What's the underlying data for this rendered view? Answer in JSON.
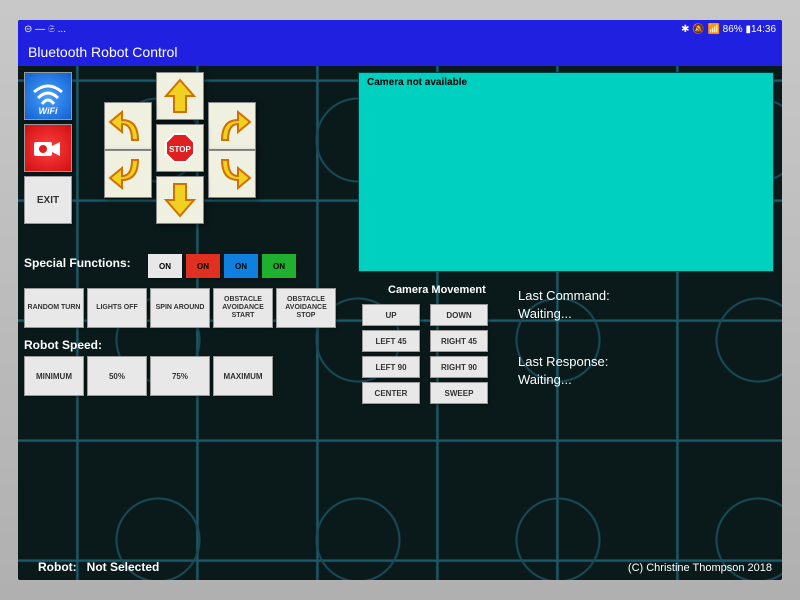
{
  "status_bar": {
    "left": "⊝ — 𝔖 ...",
    "right": "✱ 🔕 📶 86% ▮14:36"
  },
  "title": "Bluetooth Robot Control",
  "side": {
    "wifi": "WiFi",
    "exit": "EXIT"
  },
  "dpad": {
    "stop": "STOP"
  },
  "camera": {
    "not_available": "Camera not available"
  },
  "special": {
    "label": "Special Functions:",
    "toggles": [
      {
        "text": "ON",
        "bg": "#e8e8e8"
      },
      {
        "text": "ON",
        "bg": "#e03020"
      },
      {
        "text": "ON",
        "bg": "#1080e0"
      },
      {
        "text": "ON",
        "bg": "#20b030"
      }
    ],
    "funcs": [
      "RANDOM TURN",
      "LIGHTS OFF",
      "SPIN AROUND",
      "OBSTACLE AVOIDANCE START",
      "OBSTACLE AVOIDANCE STOP"
    ]
  },
  "speed": {
    "label": "Robot Speed:",
    "options": [
      "MINIMUM",
      "50%",
      "75%",
      "MAXIMUM"
    ]
  },
  "camera_move": {
    "label": "Camera Movement",
    "buttons": [
      "UP",
      "DOWN",
      "LEFT 45",
      "RIGHT 45",
      "LEFT 90",
      "RIGHT 90",
      "CENTER",
      "SWEEP"
    ]
  },
  "last_command": {
    "label": "Last Command:",
    "value": "Waiting..."
  },
  "last_response": {
    "label": "Last Response:",
    "value": "Waiting..."
  },
  "robot": {
    "label": "Robot:",
    "value": "Not Selected"
  },
  "copyright": "(C) Christine Thompson 2018",
  "colors": {
    "arrow_fill": "#f0d020",
    "arrow_stroke": "#d07000",
    "stop_fill": "#e02020"
  }
}
